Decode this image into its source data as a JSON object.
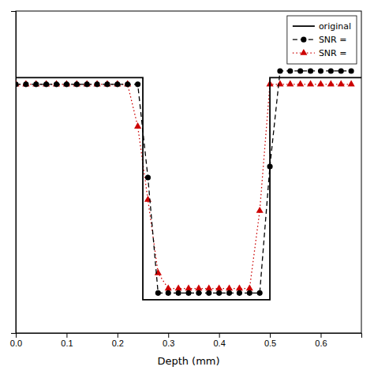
{
  "chart_data": {
    "type": "line",
    "xlabel": "Depth (mm)",
    "xlim": [
      0.0,
      0.68
    ],
    "ylim": [
      -15,
      130
    ],
    "xticks": [
      {
        "value": 0.0,
        "label": "0.0"
      },
      0.1,
      0.2,
      0.3,
      0.4,
      0.5,
      0.6
    ],
    "tick_labels": "x",
    "grid": false,
    "legend": "upper right",
    "series": [
      {
        "name": "original",
        "color": "#000000",
        "line_style": "solid",
        "x": [
          0.0,
          0.25,
          0.25,
          0.5,
          0.5,
          0.68
        ],
        "values": [
          100.0,
          100.0,
          0.0,
          0.0,
          100.0,
          100.0
        ]
      },
      {
        "name": "SNR = ",
        "color": "#000000",
        "line_style": "dashed",
        "marker": "circle",
        "x": [
          0.0,
          0.02,
          0.04,
          0.06,
          0.08,
          0.1,
          0.12,
          0.14,
          0.16,
          0.18,
          0.2,
          0.22,
          0.24,
          0.26,
          0.28,
          0.3,
          0.32,
          0.34,
          0.36,
          0.38,
          0.4,
          0.42,
          0.44,
          0.46,
          0.48,
          0.5,
          0.52,
          0.54,
          0.56,
          0.58,
          0.6,
          0.62,
          0.64,
          0.66
        ],
        "values": [
          97.0,
          97.0,
          97.0,
          97.0,
          97.0,
          97.0,
          97.0,
          97.0,
          97.0,
          97.0,
          97.0,
          97.0,
          97.0,
          55.0,
          3.0,
          3.0,
          3.0,
          3.0,
          3.0,
          3.0,
          3.0,
          3.0,
          3.0,
          3.0,
          3.0,
          60.0,
          103.0,
          103.0,
          103.0,
          103.0,
          103.0,
          103.0,
          103.0,
          103.0
        ]
      },
      {
        "name": "SNR = ",
        "color": "#cc0000",
        "line_style": "dotted",
        "marker": "triangle",
        "x": [
          0.0,
          0.02,
          0.04,
          0.06,
          0.08,
          0.1,
          0.12,
          0.14,
          0.16,
          0.18,
          0.2,
          0.22,
          0.24,
          0.26,
          0.28,
          0.3,
          0.32,
          0.34,
          0.36,
          0.38,
          0.4,
          0.42,
          0.44,
          0.46,
          0.48,
          0.5,
          0.52,
          0.54,
          0.56,
          0.58,
          0.6,
          0.62,
          0.64,
          0.66
        ],
        "values": [
          97.0,
          97.0,
          97.0,
          97.0,
          97.0,
          97.0,
          97.0,
          97.0,
          97.0,
          97.0,
          97.0,
          97.0,
          78.0,
          45.0,
          12.0,
          5.0,
          5.0,
          5.0,
          5.0,
          5.0,
          5.0,
          5.0,
          5.0,
          5.0,
          40.0,
          97.0,
          97.0,
          97.0,
          97.0,
          97.0,
          97.0,
          97.0,
          97.0,
          97.0
        ]
      }
    ]
  }
}
